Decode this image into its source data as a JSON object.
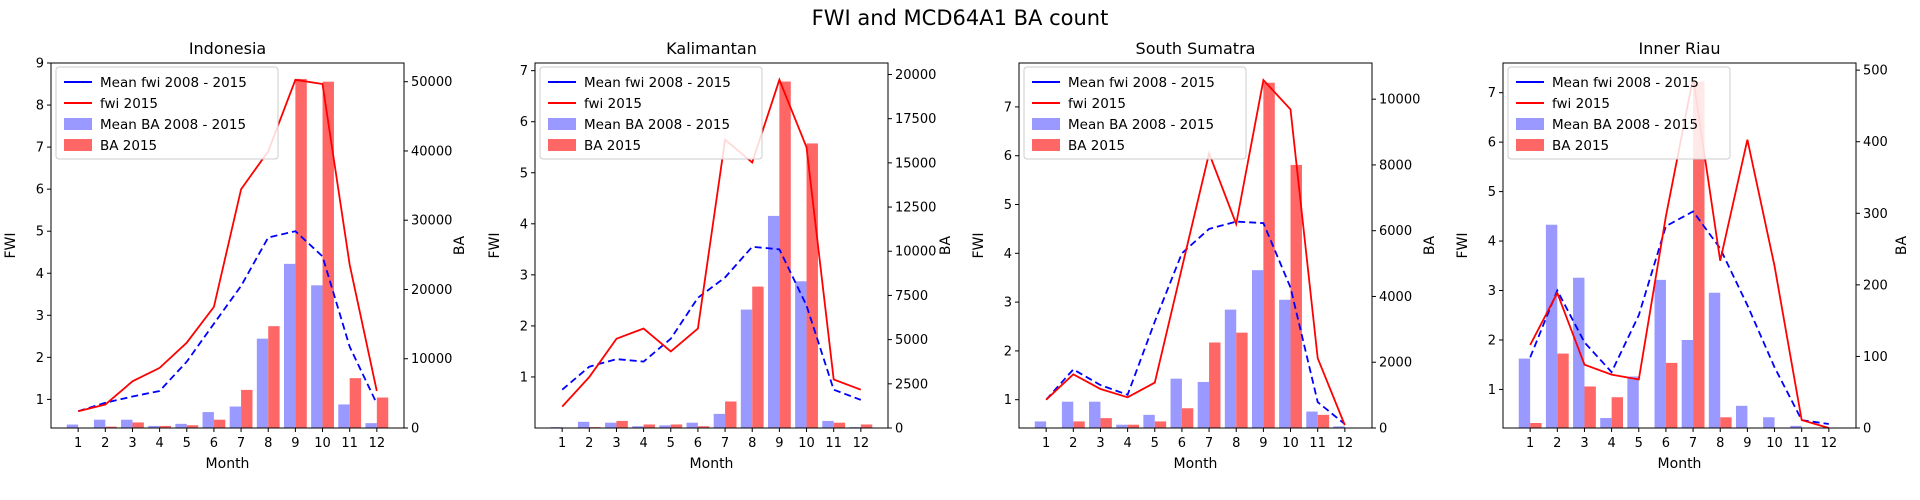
{
  "figure": {
    "title": "FWI and MCD64A1 BA count"
  },
  "colors": {
    "mean_fwi": "#0000ff",
    "fwi_2015": "#ff0000",
    "mean_ba": "#9999ff",
    "ba_2015": "#ff6666"
  },
  "chart_data": [
    {
      "type": "bar",
      "title": "Indonesia",
      "xlabel": "Month",
      "ylabel": "FWI",
      "y2label": "BA",
      "categories": [
        "1",
        "2",
        "3",
        "4",
        "5",
        "6",
        "7",
        "8",
        "9",
        "10",
        "11",
        "12"
      ],
      "ylim": [
        0.32,
        9
      ],
      "yticks": [
        1,
        2,
        3,
        4,
        5,
        6,
        7,
        8,
        9
      ],
      "y2lim": [
        0,
        52700
      ],
      "y2ticks": [
        0,
        10000,
        20000,
        30000,
        40000,
        50000
      ],
      "legend_position": "top-left",
      "series": [
        {
          "name": "Mean fwi 2008 - 2015",
          "kind": "line",
          "axis": "left",
          "dash": true,
          "values": [
            0.72,
            0.92,
            1.07,
            1.2,
            1.9,
            2.8,
            3.7,
            4.85,
            5.0,
            4.4,
            2.25,
            0.9
          ]
        },
        {
          "name": "fwi 2015",
          "kind": "line",
          "axis": "left",
          "values": [
            0.72,
            0.88,
            1.43,
            1.75,
            2.35,
            3.2,
            6.0,
            6.9,
            8.6,
            8.5,
            4.2,
            1.2
          ]
        },
        {
          "name": "Mean BA 2008 - 2015",
          "kind": "bar",
          "axis": "right",
          "values": [
            500,
            1200,
            1200,
            300,
            600,
            2300,
            3100,
            12900,
            23700,
            20600,
            3400,
            700
          ]
        },
        {
          "name": "BA 2015",
          "kind": "bar",
          "axis": "right",
          "values": [
            0,
            200,
            800,
            300,
            400,
            1200,
            5500,
            14700,
            50400,
            50000,
            7200,
            4400
          ]
        }
      ]
    },
    {
      "type": "bar",
      "title": "Kalimantan",
      "xlabel": "Month",
      "ylabel": "FWI",
      "y2label": "BA",
      "categories": [
        "1",
        "2",
        "3",
        "4",
        "5",
        "6",
        "7",
        "8",
        "9",
        "10",
        "11",
        "12"
      ],
      "ylim": [
        0,
        7.15
      ],
      "yticks": [
        1,
        2,
        3,
        4,
        5,
        6,
        7
      ],
      "y2lim": [
        0,
        20650
      ],
      "y2ticks": [
        0,
        2500,
        5000,
        7500,
        10000,
        12500,
        15000,
        17500,
        20000
      ],
      "legend_position": "top-left",
      "series": [
        {
          "name": "Mean fwi 2008 - 2015",
          "kind": "line",
          "axis": "left",
          "dash": true,
          "values": [
            0.75,
            1.2,
            1.35,
            1.3,
            1.75,
            2.55,
            2.95,
            3.55,
            3.5,
            2.4,
            0.75,
            0.55
          ]
        },
        {
          "name": "fwi 2015",
          "kind": "line",
          "axis": "left",
          "values": [
            0.42,
            1.0,
            1.75,
            1.95,
            1.5,
            1.95,
            5.65,
            5.2,
            6.82,
            5.5,
            0.95,
            0.75
          ]
        },
        {
          "name": "Mean BA 2008 - 2015",
          "kind": "bar",
          "axis": "right",
          "values": [
            50,
            350,
            300,
            100,
            150,
            300,
            800,
            6700,
            12000,
            8300,
            400,
            50
          ]
        },
        {
          "name": "BA 2015",
          "kind": "bar",
          "axis": "right",
          "values": [
            0,
            50,
            400,
            200,
            200,
            100,
            1500,
            8000,
            19600,
            16100,
            300,
            200
          ]
        }
      ]
    },
    {
      "type": "bar",
      "title": "South Sumatra",
      "xlabel": "Month",
      "ylabel": "FWI",
      "y2label": "BA",
      "categories": [
        "1",
        "2",
        "3",
        "4",
        "5",
        "6",
        "7",
        "8",
        "9",
        "10",
        "11",
        "12"
      ],
      "ylim": [
        0.42,
        7.9
      ],
      "yticks": [
        1,
        2,
        3,
        4,
        5,
        6,
        7
      ],
      "y2lim": [
        0,
        11100
      ],
      "y2ticks": [
        0,
        2000,
        4000,
        6000,
        8000,
        10000
      ],
      "legend_position": "top-left",
      "series": [
        {
          "name": "Mean fwi 2008 - 2015",
          "kind": "line",
          "axis": "left",
          "dash": true,
          "values": [
            1.0,
            1.62,
            1.3,
            1.1,
            2.6,
            4.0,
            4.5,
            4.65,
            4.62,
            3.3,
            0.95,
            0.5
          ]
        },
        {
          "name": "fwi 2015",
          "kind": "line",
          "axis": "left",
          "values": [
            1.0,
            1.52,
            1.22,
            1.05,
            1.35,
            3.7,
            6.05,
            4.6,
            7.55,
            6.95,
            1.85,
            0.48
          ]
        },
        {
          "name": "Mean BA 2008 - 2015",
          "kind": "bar",
          "axis": "right",
          "values": [
            200,
            800,
            800,
            100,
            400,
            1500,
            1400,
            3600,
            4800,
            3900,
            500,
            50
          ]
        },
        {
          "name": "BA 2015",
          "kind": "bar",
          "axis": "right",
          "values": [
            0,
            200,
            300,
            100,
            200,
            600,
            2600,
            2900,
            10500,
            8000,
            400,
            0
          ]
        }
      ]
    },
    {
      "type": "bar",
      "title": "Inner Riau",
      "xlabel": "Month",
      "ylabel": "FWI",
      "y2label": "BA",
      "categories": [
        "1",
        "2",
        "3",
        "4",
        "5",
        "6",
        "7",
        "8",
        "9",
        "10",
        "11",
        "12"
      ],
      "ylim": [
        0.22,
        7.6
      ],
      "yticks": [
        1,
        2,
        3,
        4,
        5,
        6,
        7
      ],
      "y2lim": [
        0,
        510
      ],
      "y2ticks": [
        0,
        100,
        200,
        300,
        400,
        500
      ],
      "legend_position": "top-left",
      "series": [
        {
          "name": "Mean fwi 2008 - 2015",
          "kind": "line",
          "axis": "left",
          "dash": true,
          "values": [
            1.65,
            3.0,
            1.95,
            1.35,
            2.5,
            4.3,
            4.6,
            3.85,
            2.7,
            1.45,
            0.38,
            0.3
          ]
        },
        {
          "name": "fwi 2015",
          "kind": "line",
          "axis": "left",
          "values": [
            1.9,
            2.95,
            1.5,
            1.3,
            1.2,
            4.5,
            7.3,
            3.6,
            6.05,
            3.5,
            0.38,
            0.22
          ]
        },
        {
          "name": "Mean BA 2008 - 2015",
          "kind": "bar",
          "axis": "right",
          "values": [
            97,
            284,
            210,
            14,
            72,
            207,
            123,
            189,
            31,
            15,
            3,
            0
          ]
        },
        {
          "name": "BA 2015",
          "kind": "bar",
          "axis": "right",
          "values": [
            7,
            104,
            58,
            43,
            0,
            91,
            484,
            15,
            0,
            0,
            0,
            0
          ]
        }
      ]
    }
  ]
}
